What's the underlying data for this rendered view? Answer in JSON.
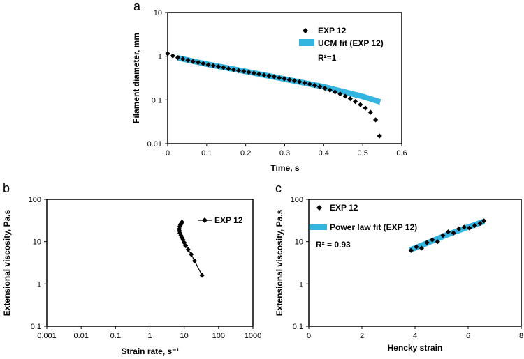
{
  "colors": {
    "data": "#000000",
    "fit": "#33b5e0"
  },
  "chart_data": [
    {
      "panel": "a",
      "type": "scatter",
      "xlabel": "Time, s",
      "ylabel": "Filament diameter, mm",
      "xlim": [
        0,
        0.6
      ],
      "ylim": [
        0.01,
        10
      ],
      "yscale": "log",
      "xticks": [
        "0",
        "0.1",
        "0.2",
        "0.3",
        "0.4",
        "0.5",
        "0.6"
      ],
      "yticks": [
        "0.01",
        "0.1",
        "1",
        "10"
      ],
      "annotation": "R²=1",
      "legend": [
        "EXP 12",
        "UCM fit (EXP 12)"
      ],
      "legend_position": "top-right",
      "series": [
        {
          "name": "EXP 12",
          "style": "diamond-markers",
          "x": [
            0.0,
            0.013,
            0.026,
            0.039,
            0.052,
            0.065,
            0.078,
            0.091,
            0.104,
            0.117,
            0.13,
            0.143,
            0.156,
            0.169,
            0.182,
            0.195,
            0.208,
            0.221,
            0.234,
            0.247,
            0.26,
            0.273,
            0.286,
            0.299,
            0.312,
            0.325,
            0.338,
            0.351,
            0.364,
            0.377,
            0.39,
            0.403,
            0.416,
            0.429,
            0.442,
            0.455,
            0.468,
            0.481,
            0.494,
            0.507,
            0.52,
            0.533,
            0.543
          ],
          "y": [
            1.15,
            1.02,
            0.93,
            0.87,
            0.81,
            0.76,
            0.72,
            0.68,
            0.64,
            0.61,
            0.58,
            0.55,
            0.52,
            0.49,
            0.47,
            0.45,
            0.43,
            0.41,
            0.39,
            0.37,
            0.355,
            0.34,
            0.32,
            0.305,
            0.29,
            0.275,
            0.26,
            0.245,
            0.23,
            0.215,
            0.2,
            0.185,
            0.168,
            0.152,
            0.137,
            0.122,
            0.107,
            0.092,
            0.078,
            0.065,
            0.052,
            0.035,
            0.015
          ]
        },
        {
          "name": "UCM fit (EXP 12)",
          "style": "thick-line",
          "x": [
            0.025,
            0.1,
            0.2,
            0.3,
            0.4,
            0.5,
            0.545
          ],
          "y": [
            0.92,
            0.66,
            0.45,
            0.3,
            0.2,
            0.12,
            0.09
          ]
        }
      ]
    },
    {
      "panel": "b",
      "type": "line",
      "xlabel": "Strain rate, s⁻¹",
      "ylabel": "Extensional viscosity, Pa.s",
      "xlim": [
        0.001,
        1000
      ],
      "ylim": [
        0.1,
        100
      ],
      "xscale": "log",
      "yscale": "log",
      "xticks": [
        "0.001",
        "0.01",
        "0.1",
        "1",
        "10",
        "100",
        "1000"
      ],
      "yticks": [
        "0.1",
        "1",
        "10",
        "100"
      ],
      "legend": [
        "EXP 12"
      ],
      "legend_position": "top-right",
      "series": [
        {
          "name": "EXP 12",
          "style": "line-diamond",
          "x": [
            33,
            20,
            16,
            13,
            11,
            10,
            9.2,
            8.5,
            8,
            7.5,
            7.2,
            7.2,
            7.5,
            7.8,
            8.2,
            8.6
          ],
          "y": [
            1.6,
            3.5,
            5,
            6.5,
            8,
            9.5,
            11,
            12.5,
            14,
            16,
            18,
            20,
            23,
            25,
            27,
            29
          ]
        }
      ]
    },
    {
      "panel": "c",
      "type": "scatter",
      "xlabel": "Hencky strain",
      "ylabel": "Extensional viscosity, Pa.s",
      "xlim": [
        0,
        8
      ],
      "ylim": [
        0.1,
        100
      ],
      "yscale": "log",
      "xticks": [
        "0",
        "2",
        "4",
        "6",
        "8"
      ],
      "yticks": [
        "0.1",
        "1",
        "10",
        "100"
      ],
      "annotation": "R² = 0.93",
      "legend": [
        "EXP 12",
        "Power law fit (EXP 12)"
      ],
      "legend_position": "top-left",
      "series": [
        {
          "name": "EXP 12",
          "style": "diamond-markers",
          "x": [
            3.85,
            4.05,
            4.25,
            4.45,
            4.65,
            4.85,
            5.05,
            5.25,
            5.45,
            5.65,
            5.85,
            6.05,
            6.25,
            6.45,
            6.6
          ],
          "y": [
            6.2,
            7.5,
            7,
            9.5,
            11,
            10,
            14,
            17,
            16,
            20,
            22,
            21,
            24,
            27,
            31
          ]
        },
        {
          "name": "Power law fit (EXP 12)",
          "style": "thick-line",
          "x": [
            3.8,
            4.5,
            5.2,
            5.9,
            6.6
          ],
          "y": [
            6.3,
            9.5,
            14.5,
            21,
            30
          ]
        }
      ]
    }
  ]
}
